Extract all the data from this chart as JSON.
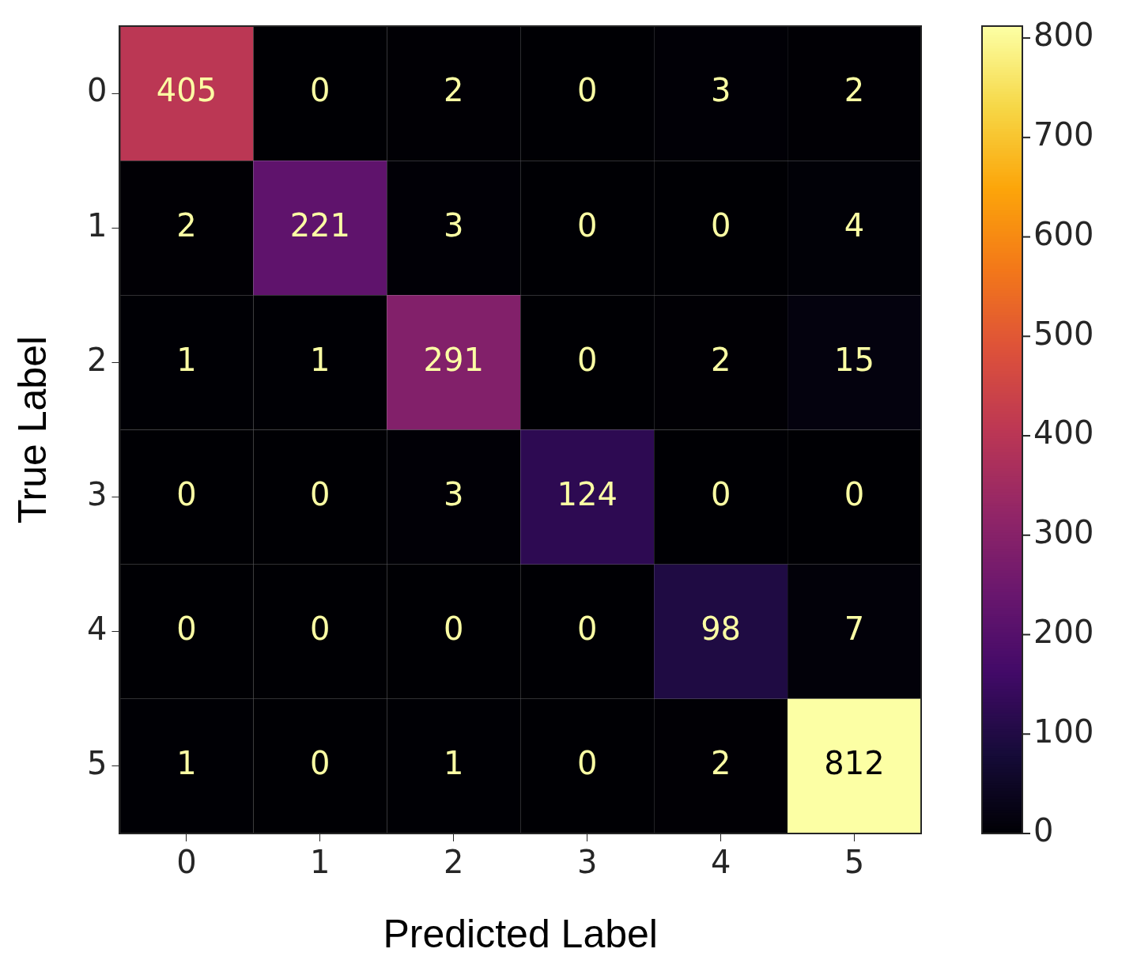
{
  "chart_data": {
    "type": "heatmap",
    "xlabel": "Predicted Label",
    "ylabel": "True Label",
    "categories": [
      "0",
      "1",
      "2",
      "3",
      "4",
      "5"
    ],
    "y_categories": [
      "0",
      "1",
      "2",
      "3",
      "4",
      "5"
    ],
    "cells": [
      [
        405,
        0,
        2,
        0,
        3,
        2
      ],
      [
        2,
        221,
        3,
        0,
        0,
        4
      ],
      [
        1,
        1,
        291,
        0,
        2,
        15
      ],
      [
        0,
        0,
        3,
        124,
        0,
        0
      ],
      [
        0,
        0,
        0,
        0,
        98,
        7
      ],
      [
        1,
        0,
        1,
        0,
        2,
        812
      ]
    ],
    "data_labels": true,
    "clim": [
      0,
      812
    ],
    "cticks": [
      0,
      100,
      200,
      300,
      400,
      500,
      600,
      700,
      800
    ]
  }
}
